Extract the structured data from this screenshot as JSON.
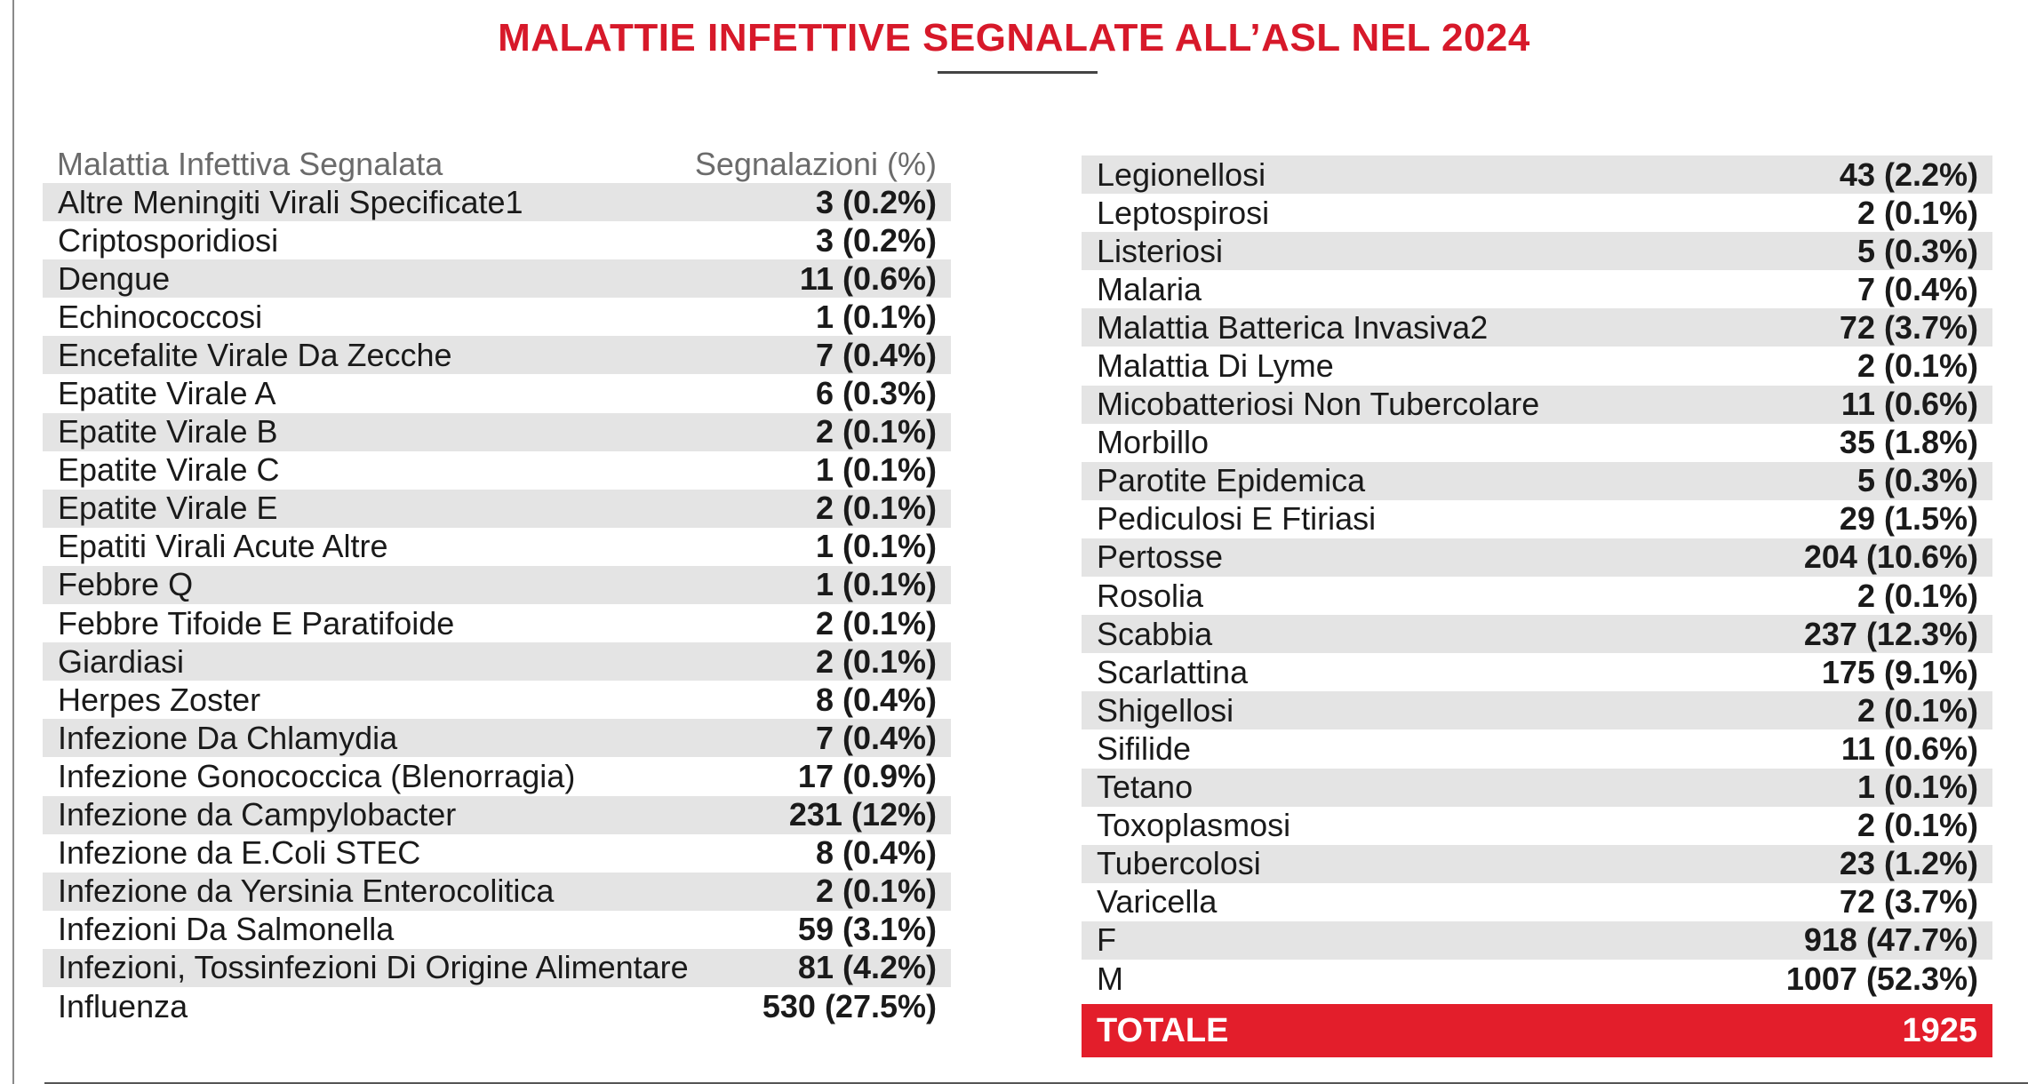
{
  "title": "MALATTIE INFETTIVE SEGNALATE ALL’ASL NEL 2024",
  "header": {
    "col_disease": "Malattia Infettiva Segnalata",
    "col_reports": "Segnalazioni (%)"
  },
  "left_rows": [
    {
      "name": "Altre Meningiti Virali Specificate1",
      "value": "3 (0.2%)"
    },
    {
      "name": "Criptosporidiosi",
      "value": "3 (0.2%)"
    },
    {
      "name": "Dengue",
      "value": "11 (0.6%)"
    },
    {
      "name": "Echinococcosi",
      "value": "1 (0.1%)"
    },
    {
      "name": "Encefalite Virale Da Zecche",
      "value": "7 (0.4%)"
    },
    {
      "name": "Epatite Virale A",
      "value": "6 (0.3%)"
    },
    {
      "name": "Epatite Virale B",
      "value": "2 (0.1%)"
    },
    {
      "name": "Epatite Virale C",
      "value": "1 (0.1%)"
    },
    {
      "name": "Epatite Virale E",
      "value": "2 (0.1%)"
    },
    {
      "name": "Epatiti Virali Acute Altre",
      "value": "1 (0.1%)"
    },
    {
      "name": "Febbre Q",
      "value": "1 (0.1%)"
    },
    {
      "name": "Febbre Tifoide E Paratifoide",
      "value": "2 (0.1%)"
    },
    {
      "name": "Giardiasi",
      "value": "2 (0.1%)"
    },
    {
      "name": "Herpes Zoster",
      "value": "8 (0.4%)"
    },
    {
      "name": "Infezione Da Chlamydia",
      "value": "7 (0.4%)"
    },
    {
      "name": "Infezione Gonococcica (Blenorragia)",
      "value": "17 (0.9%)"
    },
    {
      "name": "Infezione da Campylobacter",
      "value": "231 (12%)"
    },
    {
      "name": "Infezione da E.Coli STEC",
      "value": "8 (0.4%)"
    },
    {
      "name": "Infezione da Yersinia Enterocolitica",
      "value": "2 (0.1%)"
    },
    {
      "name": "Infezioni Da Salmonella",
      "value": "59 (3.1%)"
    },
    {
      "name": "Infezioni, Tossinfezioni Di Origine Alimentare",
      "value": "81 (4.2%)"
    },
    {
      "name": "Influenza",
      "value": "530 (27.5%)"
    }
  ],
  "right_rows": [
    {
      "name": "Legionellosi",
      "value": "43 (2.2%)"
    },
    {
      "name": "Leptospirosi",
      "value": "2 (0.1%)"
    },
    {
      "name": "Listeriosi",
      "value": "5 (0.3%)"
    },
    {
      "name": "Malaria",
      "value": "7 (0.4%)"
    },
    {
      "name": "Malattia Batterica Invasiva2",
      "value": "72 (3.7%)"
    },
    {
      "name": "Malattia Di Lyme",
      "value": "2 (0.1%)"
    },
    {
      "name": "Micobatteriosi Non Tubercolare",
      "value": "11 (0.6%)"
    },
    {
      "name": "Morbillo",
      "value": "35 (1.8%)"
    },
    {
      "name": "Parotite Epidemica",
      "value": "5 (0.3%)"
    },
    {
      "name": "Pediculosi E Ftiriasi",
      "value": "29 (1.5%)"
    },
    {
      "name": "Pertosse",
      "value": "204 (10.6%)"
    },
    {
      "name": "Rosolia",
      "value": "2 (0.1%)"
    },
    {
      "name": "Scabbia",
      "value": "237 (12.3%)"
    },
    {
      "name": "Scarlattina",
      "value": "175 (9.1%)"
    },
    {
      "name": "Shigellosi",
      "value": "2 (0.1%)"
    },
    {
      "name": "Sifilide",
      "value": "11 (0.6%)"
    },
    {
      "name": "Tetano",
      "value": "1 (0.1%)"
    },
    {
      "name": "Toxoplasmosi",
      "value": "2 (0.1%)"
    },
    {
      "name": "Tubercolosi",
      "value": "23 (1.2%)"
    },
    {
      "name": "Varicella",
      "value": "72 (3.7%)"
    },
    {
      "name": "F",
      "value": "918 (47.7%)"
    },
    {
      "name": "M",
      "value": "1007 (52.3%)"
    }
  ],
  "total": {
    "label": "TOTALE",
    "value": "1925"
  },
  "colors": {
    "accent_red": "#e31e2b",
    "title_red": "#d7192a",
    "stripe_gray": "#e4e4e4"
  }
}
